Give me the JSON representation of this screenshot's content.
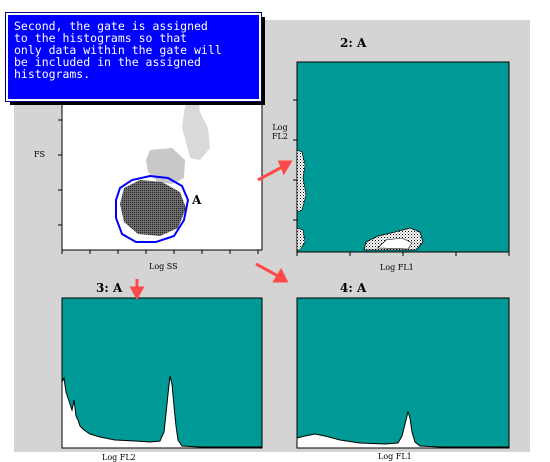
{
  "callout": {
    "text": "Second, the gate is assigned\nto the histograms so that\nonly data within the gate will\nbe included in the assigned\nhistograms."
  },
  "colors": {
    "plot_fill": "#009a96",
    "callout_bg": "#0000ff",
    "arrow": "#ff4a4a",
    "gate_line": "#0000ff",
    "panel_bg": "#d4d4d4"
  },
  "scatter_main": {
    "y_label": "FS",
    "x_label": "Log SS",
    "gate_label": "A"
  },
  "plot2": {
    "title": "2: A",
    "y_label_line1": "Log",
    "y_label_line2": "FL2",
    "x_label": "Log FL1"
  },
  "plot3": {
    "title": "3: A",
    "x_label": "Log FL2"
  },
  "plot4": {
    "title": "4: A",
    "x_label": "Log FL1"
  }
}
